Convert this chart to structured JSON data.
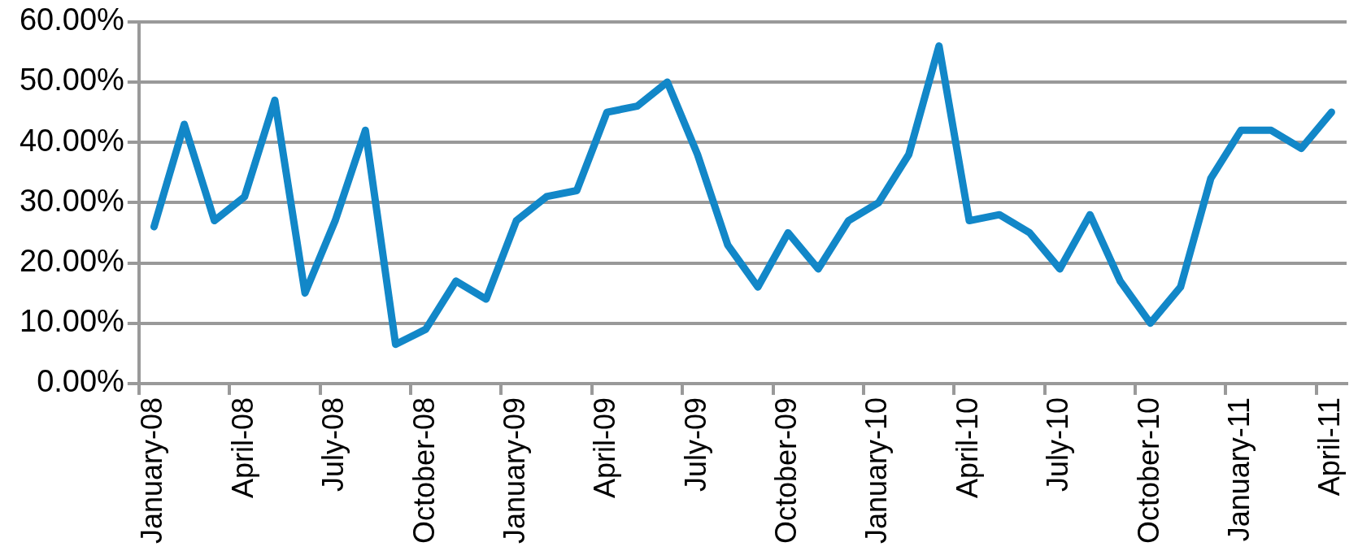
{
  "chart_data": {
    "type": "line",
    "categories": [
      "January-08",
      null,
      null,
      "April-08",
      null,
      null,
      "July-08",
      null,
      null,
      "October-08",
      null,
      null,
      "January-09",
      null,
      null,
      "April-09",
      null,
      null,
      "July-09",
      null,
      null,
      "October-09",
      null,
      null,
      "January-10",
      null,
      null,
      "April-10",
      null,
      null,
      "July-10",
      null,
      null,
      "October-10",
      null,
      null,
      "January-11",
      null,
      null,
      "April-11"
    ],
    "series": [
      {
        "color": "#1287c8",
        "values": [
          26,
          43,
          27,
          31,
          47,
          15,
          27,
          42,
          6.5,
          9,
          17,
          14,
          27,
          31,
          32,
          45,
          46,
          50,
          38,
          23,
          16,
          25,
          19,
          27,
          30,
          38,
          56,
          27,
          28,
          25,
          19,
          28,
          17,
          10,
          16,
          34,
          42,
          42,
          39,
          45
        ]
      }
    ],
    "ylim": [
      0,
      60
    ],
    "yticks": [
      {
        "value": 0,
        "label": "0.00%"
      },
      {
        "value": 10,
        "label": "10.00%"
      },
      {
        "value": 20,
        "label": "20.00%"
      },
      {
        "value": 30,
        "label": "30.00%"
      },
      {
        "value": 40,
        "label": "40.00%"
      },
      {
        "value": 50,
        "label": "50.00%"
      },
      {
        "value": 60,
        "label": "60.00%"
      }
    ],
    "grid": "y",
    "legend": false,
    "marker": "none",
    "line_style": "solid"
  }
}
